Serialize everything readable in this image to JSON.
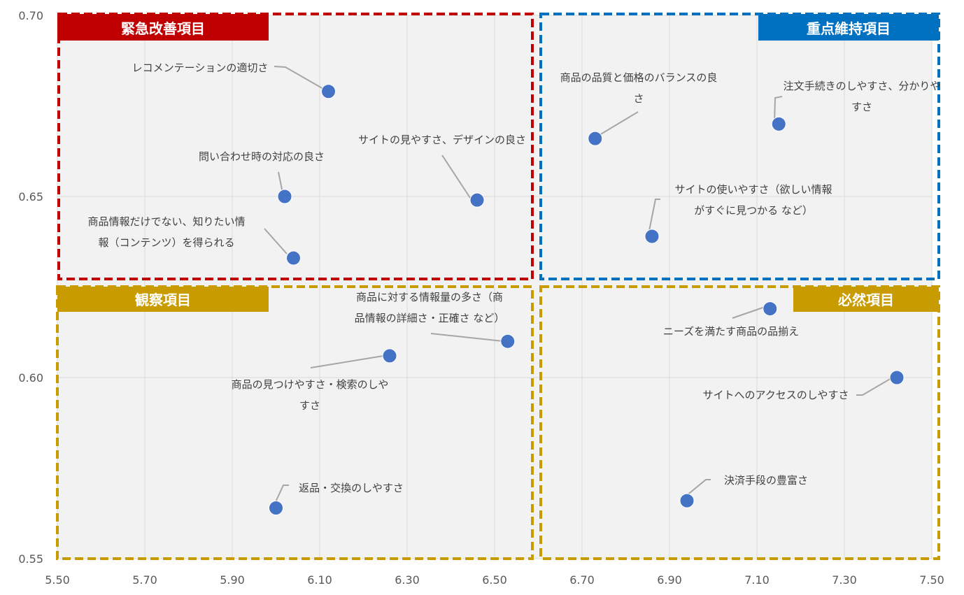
{
  "chart_data": {
    "type": "scatter",
    "xlim": [
      5.5,
      7.5
    ],
    "ylim": [
      0.55,
      0.7
    ],
    "x_ticks": [
      "5.50",
      "5.70",
      "5.90",
      "6.10",
      "6.30",
      "6.50",
      "6.70",
      "6.90",
      "7.10",
      "7.30",
      "7.50"
    ],
    "y_ticks": [
      "0.55",
      "0.60",
      "0.65",
      "0.70"
    ],
    "grid": true,
    "marker_color": "#4472C4",
    "quadrants": [
      {
        "title": "緊急改善項目",
        "color": "#C00000"
      },
      {
        "title": "重点維持項目",
        "color": "#0070C0"
      },
      {
        "title": "観察項目",
        "color": "#C89B00"
      },
      {
        "title": "必然項目",
        "color": "#C89B00"
      }
    ],
    "points": [
      {
        "label": [
          "レコメンテーションの適切さ"
        ],
        "x": 6.12,
        "y": 0.679
      },
      {
        "label": [
          "問い合わせ時の対応の良さ"
        ],
        "x": 6.02,
        "y": 0.65
      },
      {
        "label": [
          "サイトの見やすさ、デザインの良さ"
        ],
        "x": 6.46,
        "y": 0.649
      },
      {
        "label": [
          "商品情報だけでない、知りたい情",
          "報（コンテンツ）を得られる"
        ],
        "x": 6.04,
        "y": 0.633
      },
      {
        "label": [
          "商品の品質と価格のバランスの良",
          "さ"
        ],
        "x": 6.73,
        "y": 0.666
      },
      {
        "label": [
          "注文手続きのしやすさ、分かりや",
          "すさ"
        ],
        "x": 7.15,
        "y": 0.67
      },
      {
        "label": [
          "サイトの使いやすさ（欲しい情報",
          "がすぐに見つかる など）"
        ],
        "x": 6.86,
        "y": 0.639
      },
      {
        "label": [
          "商品に対する情報量の多さ（商",
          "品情報の詳細さ・正確さ など）"
        ],
        "x": 6.53,
        "y": 0.61
      },
      {
        "label": [
          "商品の見つけやすさ・検索のしや",
          "すさ"
        ],
        "x": 6.26,
        "y": 0.606
      },
      {
        "label": [
          "返品・交換のしやすさ"
        ],
        "x": 6.0,
        "y": 0.564
      },
      {
        "label": [
          "ニーズを満たす商品の品揃え"
        ],
        "x": 7.13,
        "y": 0.619
      },
      {
        "label": [
          "サイトへのアクセスのしやすさ"
        ],
        "x": 7.42,
        "y": 0.6
      },
      {
        "label": [
          "決済手段の豊富さ"
        ],
        "x": 6.94,
        "y": 0.566
      }
    ]
  }
}
